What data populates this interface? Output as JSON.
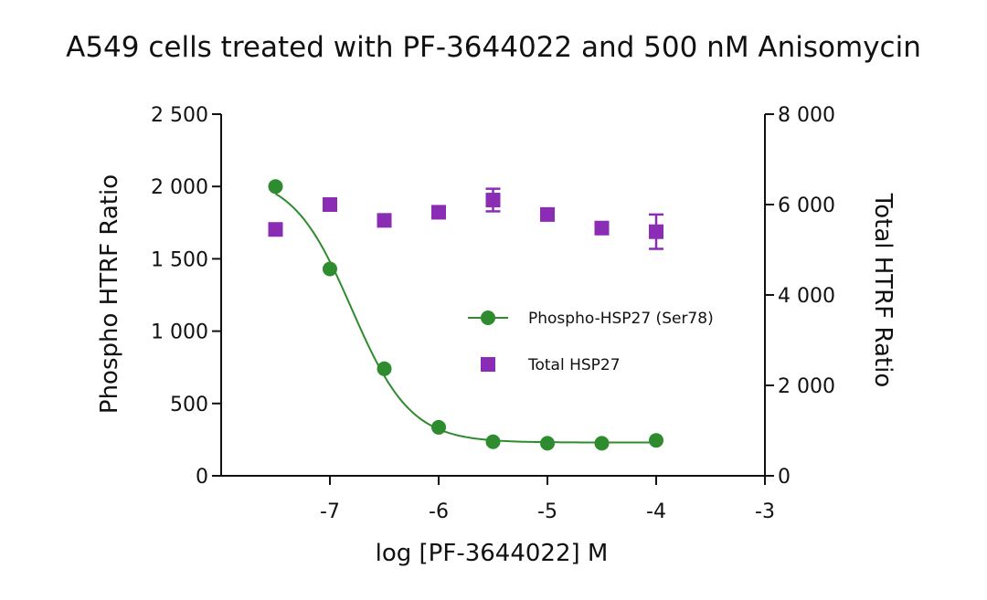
{
  "chart_data": {
    "type": "scatter",
    "title": "A549 cells treated with PF-3644022 and 500 nM Anisomycin",
    "xlabel": "log [PF-3644022] M",
    "ylabel_left": "Phospho HTRF Ratio",
    "ylabel_right": "Total  HTRF Ratio",
    "xlim": [
      -8,
      -3
    ],
    "ylim_left": [
      0,
      2500
    ],
    "ylim_right": [
      0,
      8000
    ],
    "x_ticks": [
      -7,
      -6,
      -5,
      -4,
      -3
    ],
    "x_tick_labels": [
      "-7",
      "-6",
      "-5",
      "-4",
      "-3"
    ],
    "y_left_ticks": [
      0,
      500,
      1000,
      1500,
      2000,
      2500
    ],
    "y_left_tick_labels": [
      "0",
      "500",
      "1 000",
      "1 500",
      "2 000",
      "2 500"
    ],
    "y_right_ticks": [
      0,
      2000,
      4000,
      6000,
      8000
    ],
    "y_right_tick_labels": [
      "0",
      "2 000",
      "4 000",
      "6 000",
      "8 000"
    ],
    "legend_position": "center-right",
    "series": [
      {
        "name": "Phospho-HSP27 (Ser78)",
        "axis": "left",
        "marker": "circle",
        "color": "#2e8b2e",
        "x": [
          -7.5,
          -7.0,
          -6.5,
          -6.0,
          -5.5,
          -5.0,
          -4.5,
          -4.0
        ],
        "y": [
          2000,
          1430,
          740,
          335,
          235,
          225,
          225,
          245
        ],
        "fit": {
          "model": "4PL",
          "top": 2080,
          "bottom": 230,
          "logIC50": -6.8,
          "hill": 1.6
        }
      },
      {
        "name": "Total HSP27",
        "axis": "right",
        "marker": "square",
        "color": "#8b2cb5",
        "x": [
          -7.5,
          -7.0,
          -6.5,
          -6.0,
          -5.5,
          -5.0,
          -4.5,
          -4.0
        ],
        "y": [
          5450,
          6000,
          5650,
          5830,
          6100,
          5780,
          5480,
          5400
        ],
        "err": [
          0,
          0,
          0,
          0,
          250,
          120,
          120,
          380
        ]
      }
    ]
  }
}
